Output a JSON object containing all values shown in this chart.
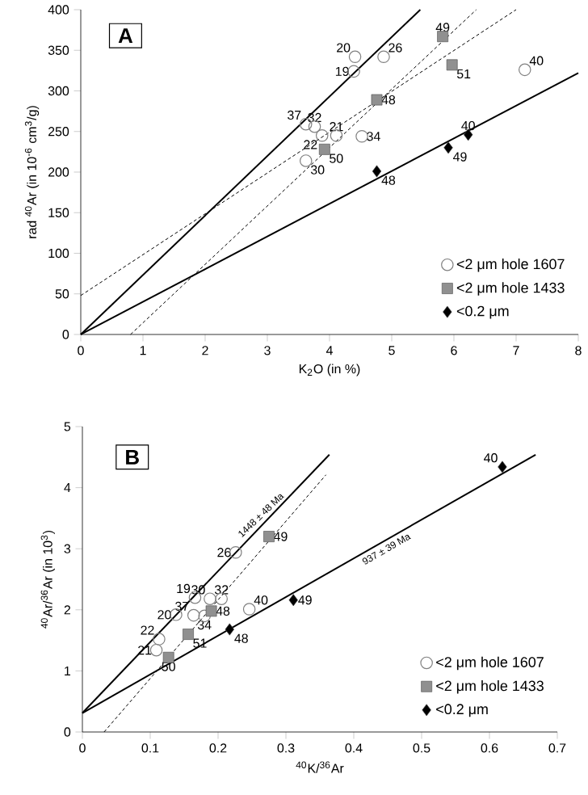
{
  "chart_data": [
    {
      "type": "scatter",
      "xlabel": "K$_{2}$O (in %)",
      "ylabel": "rad $^{40}$Ar (in 10$^{-6}$ cm$^{3}$/g)",
      "xlim": [
        0,
        8
      ],
      "ylim": [
        0,
        400
      ],
      "xticks": [
        0,
        1,
        2,
        3,
        4,
        5,
        6,
        7,
        8
      ],
      "yticks": [
        0,
        50,
        100,
        150,
        200,
        250,
        300,
        350,
        400
      ],
      "legend": "bottom right",
      "series": [
        {
          "name": "<2 μm hole 1607",
          "color": "#808080",
          "marker": "circle",
          "x": [
            4.41,
            4.87,
            4.39,
            3.62,
            3.76,
            4.11,
            3.88,
            3.62,
            4.52,
            7.14
          ],
          "values": [
            342,
            342,
            324,
            259,
            256,
            245,
            245,
            214,
            244,
            326
          ]
        },
        {
          "name": "<2 μm hole 1433",
          "color": "#909090",
          "marker": "square",
          "x": [
            5.82,
            5.97,
            4.76,
            3.92
          ],
          "values": [
            367,
            332,
            289,
            228
          ]
        },
        {
          "name": "<0.2 μm",
          "color": "#000000",
          "marker": "diamond",
          "x": [
            4.76,
            5.91,
            6.23
          ],
          "values": [
            201,
            230,
            246
          ]
        },
        {
          "type": "line",
          "color": "#000000",
          "line_style": "solid",
          "x": [
            0,
            5.46
          ],
          "values": [
            0,
            400
          ]
        },
        {
          "type": "line",
          "color": "#000000",
          "line_style": "solid",
          "x": [
            0,
            8
          ],
          "values": [
            0,
            322
          ]
        },
        {
          "type": "line",
          "color": "#000000",
          "line_style": "dashed",
          "x": [
            0,
            7.0
          ],
          "values": [
            48,
            400
          ]
        },
        {
          "type": "line",
          "color": "#000000",
          "line_style": "dashed",
          "x": [
            0.8,
            6.36
          ],
          "values": [
            0,
            400
          ]
        }
      ],
      "annotations": [
        "A",
        {
          "text": "20",
          "x": 4.41,
          "y": 342
        },
        {
          "text": "26",
          "x": 4.87,
          "y": 342
        },
        {
          "text": "19",
          "x": 4.39,
          "y": 324
        },
        {
          "text": "37",
          "x": 3.62,
          "y": 259
        },
        {
          "text": "32",
          "x": 3.76,
          "y": 256
        },
        {
          "text": "21",
          "x": 4.11,
          "y": 245
        },
        {
          "text": "22",
          "x": 3.88,
          "y": 245
        },
        {
          "text": "30",
          "x": 3.62,
          "y": 214
        },
        {
          "text": "34",
          "x": 4.52,
          "y": 244
        },
        {
          "text": "40",
          "x": 7.14,
          "y": 326
        },
        {
          "text": "49",
          "x": 5.82,
          "y": 367
        },
        {
          "text": "51",
          "x": 5.97,
          "y": 332
        },
        {
          "text": "48",
          "x": 4.76,
          "y": 289
        },
        {
          "text": "50",
          "x": 3.92,
          "y": 228
        },
        {
          "text": "48",
          "x": 4.76,
          "y": 201
        },
        {
          "text": "49",
          "x": 5.91,
          "y": 230
        },
        {
          "text": "40",
          "x": 6.23,
          "y": 246
        }
      ]
    },
    {
      "type": "scatter",
      "xlabel": "$^{40}$K/$^{36}$Ar",
      "ylabel": "$^{40}$Ar/$^{36}$Ar (in 10$^{3}$)",
      "xlim": [
        0,
        0.7
      ],
      "ylim": [
        0,
        5
      ],
      "xticks": [
        0,
        0.1,
        0.2,
        0.3,
        0.4,
        0.5,
        0.6,
        0.7
      ],
      "yticks": [
        0,
        1,
        2,
        3,
        4,
        5
      ],
      "legend": "bottom right",
      "series": [
        {
          "name": "<2 μm hole 1607",
          "color": "#808080",
          "marker": "circle",
          "x": [
            0.109,
            0.113,
            0.138,
            0.164,
            0.166,
            0.188,
            0.205,
            0.226,
            0.246,
            0.18
          ],
          "values": [
            1.34,
            1.52,
            1.92,
            1.91,
            2.2,
            2.18,
            2.18,
            2.94,
            2.01,
            1.9
          ]
        },
        {
          "name": "<2 μm hole 1433",
          "color": "#909090",
          "marker": "square",
          "x": [
            0.275,
            0.19,
            0.156,
            0.127
          ],
          "values": [
            3.2,
            1.98,
            1.6,
            1.22
          ]
        },
        {
          "name": "<0.2 μm",
          "color": "#000000",
          "marker": "diamond",
          "x": [
            0.217,
            0.311,
            0.619
          ],
          "values": [
            1.68,
            2.16,
            4.34
          ]
        },
        {
          "type": "line",
          "color": "#000000",
          "line_style": "solid",
          "x": [
            0,
            0.364
          ],
          "values": [
            0.31,
            4.54
          ]
        },
        {
          "type": "line",
          "color": "#000000",
          "line_style": "solid",
          "x": [
            0,
            0.668
          ],
          "values": [
            0.31,
            4.54
          ]
        },
        {
          "type": "line",
          "color": "#000000",
          "line_style": "dashed",
          "x": [
            0.032,
            0.359
          ],
          "values": [
            0,
            4.21
          ]
        }
      ],
      "annotations": [
        "B",
        {
          "text": "21",
          "x": 0.109,
          "y": 1.34
        },
        {
          "text": "22",
          "x": 0.113,
          "y": 1.52
        },
        {
          "text": "20",
          "x": 0.138,
          "y": 1.92
        },
        {
          "text": "37",
          "x": 0.164,
          "y": 1.91
        },
        {
          "text": "19",
          "x": 0.166,
          "y": 2.2
        },
        {
          "text": "30",
          "x": 0.188,
          "y": 2.18
        },
        {
          "text": "32",
          "x": 0.205,
          "y": 2.18
        },
        {
          "text": "26",
          "x": 0.226,
          "y": 2.94
        },
        {
          "text": "40",
          "x": 0.246,
          "y": 2.01
        },
        {
          "text": "34",
          "x": 0.18,
          "y": 1.9
        },
        {
          "text": "49",
          "x": 0.275,
          "y": 3.2
        },
        {
          "text": "48",
          "x": 0.19,
          "y": 1.98
        },
        {
          "text": "51",
          "x": 0.156,
          "y": 1.6
        },
        {
          "text": "50",
          "x": 0.127,
          "y": 1.22
        },
        {
          "text": "48",
          "x": 0.217,
          "y": 1.68
        },
        {
          "text": "49",
          "x": 0.311,
          "y": 2.16
        },
        {
          "text": "40",
          "x": 0.619,
          "y": 4.34
        },
        {
          "text": "1448 ± 48 Ma",
          "x": 0.271,
          "y": 3.46
        },
        {
          "text": "937 ± 39 Ma",
          "x": 0.442,
          "y": 3.11
        }
      ]
    }
  ]
}
